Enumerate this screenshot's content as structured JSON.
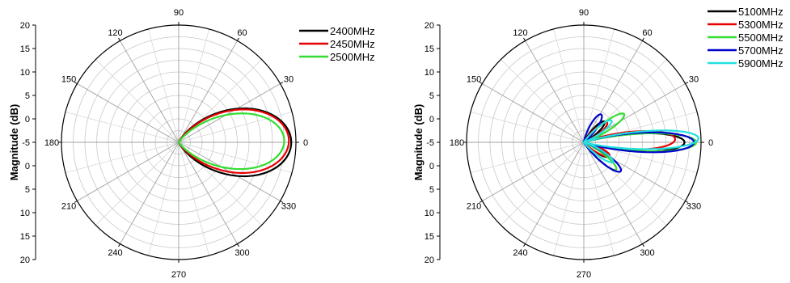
{
  "chart_data": [
    {
      "type": "polar",
      "ylabel": "Magnitude (dB)",
      "radial_tick_labels": [
        "20",
        "15",
        "10",
        "5",
        "0",
        "-5",
        "0",
        "5",
        "10",
        "15",
        "20"
      ],
      "angle_ticks": [
        0,
        30,
        60,
        90,
        120,
        150,
        180,
        210,
        240,
        270,
        300,
        330
      ],
      "angle_tick_labels": [
        "0",
        "30",
        "60",
        "90",
        "120",
        "150",
        "180",
        "210",
        "240",
        "270",
        "300",
        "330"
      ],
      "rlim": [
        0,
        1
      ],
      "grid": true,
      "legend_position": "top-right",
      "series": [
        {
          "name": "2400MHz",
          "color": "#000000",
          "lobes": [
            {
              "dir": 0,
              "peak": 0.96,
              "halfwidth": 30,
              "exp": 0.92
            }
          ]
        },
        {
          "name": "2450MHz",
          "color": "#e60000",
          "lobes": [
            {
              "dir": 1,
              "peak": 0.94,
              "halfwidth": 29,
              "exp": 0.95
            }
          ]
        },
        {
          "name": "2500MHz",
          "color": "#33dd33",
          "lobes": [
            {
              "dir": 1,
              "peak": 0.9,
              "halfwidth": 27,
              "exp": 1.0
            }
          ]
        }
      ]
    },
    {
      "type": "polar",
      "ylabel": "Magnitude (dB)",
      "radial_tick_labels": [
        "20",
        "15",
        "10",
        "5",
        "0",
        "-5",
        "0",
        "5",
        "10",
        "15",
        "20"
      ],
      "angle_ticks": [
        0,
        30,
        60,
        90,
        120,
        150,
        180,
        210,
        240,
        270,
        300,
        330
      ],
      "angle_tick_labels": [
        "0",
        "30",
        "60",
        "90",
        "120",
        "150",
        "180",
        "210",
        "240",
        "270",
        "300",
        "330"
      ],
      "rlim": [
        0,
        1
      ],
      "grid": true,
      "legend_position": "top-right",
      "series": [
        {
          "name": "5100MHz",
          "color": "#000000",
          "lobes": [
            {
              "dir": 0,
              "peak": 0.86,
              "halfwidth": 9,
              "exp": 1.0
            },
            {
              "dir": 45,
              "peak": 0.25,
              "halfwidth": 10,
              "exp": 1.0
            },
            {
              "dir": -30,
              "peak": 0.24,
              "halfwidth": 10,
              "exp": 1.0
            }
          ]
        },
        {
          "name": "5300MHz",
          "color": "#e60000",
          "lobes": [
            {
              "dir": 2,
              "peak": 0.78,
              "halfwidth": 10,
              "exp": 1.0
            },
            {
              "dir": 40,
              "peak": 0.26,
              "halfwidth": 10,
              "exp": 1.0
            },
            {
              "dir": -28,
              "peak": 0.25,
              "halfwidth": 10,
              "exp": 1.0
            }
          ]
        },
        {
          "name": "5500MHz",
          "color": "#33dd33",
          "lobes": [
            {
              "dir": 0,
              "peak": 0.96,
              "halfwidth": 8,
              "exp": 1.0
            },
            {
              "dir": 35,
              "peak": 0.42,
              "halfwidth": 9,
              "exp": 1.0
            },
            {
              "dir": -40,
              "peak": 0.36,
              "halfwidth": 9,
              "exp": 1.0
            }
          ]
        },
        {
          "name": "5700MHz",
          "color": "#0000cc",
          "lobes": [
            {
              "dir": 0,
              "peak": 0.94,
              "halfwidth": 9,
              "exp": 1.0
            },
            {
              "dir": 58,
              "peak": 0.28,
              "halfwidth": 11,
              "exp": 1.0
            },
            {
              "dir": -38,
              "peak": 0.4,
              "halfwidth": 10,
              "exp": 1.0
            }
          ]
        },
        {
          "name": "5900MHz",
          "color": "#22e0e0",
          "lobes": [
            {
              "dir": 2,
              "peak": 0.98,
              "halfwidth": 8,
              "exp": 1.0
            },
            {
              "dir": 38,
              "peak": 0.3,
              "halfwidth": 9,
              "exp": 1.0
            },
            {
              "dir": -34,
              "peak": 0.3,
              "halfwidth": 9,
              "exp": 1.0
            }
          ]
        }
      ]
    }
  ]
}
